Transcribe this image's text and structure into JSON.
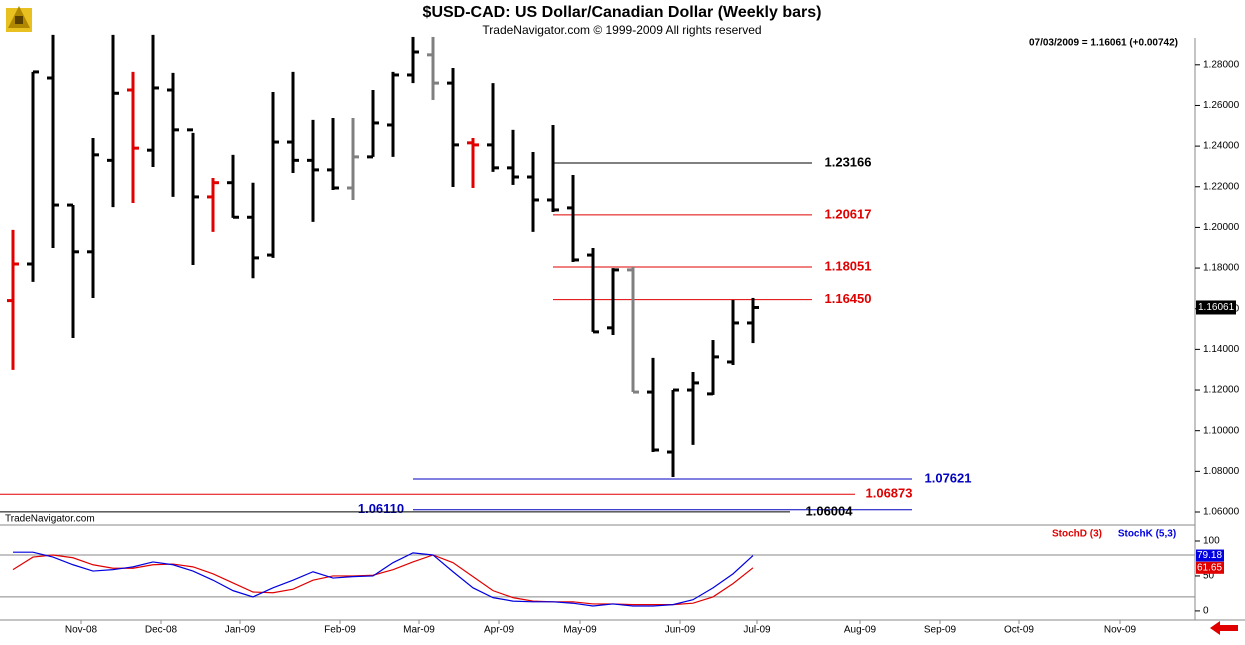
{
  "chart_data": {
    "type": "ohlc",
    "title": "$USD-CAD:  US Dollar/Canadian Dollar  (Weekly bars)",
    "subtitle": "TradeNavigator.com © 1999-2009 All rights reserved",
    "info": "07/03/2009 = 1.16061 (+0.00742)",
    "watermark": "TradeNavigator.com",
    "last_price": {
      "value": 1.16061,
      "label": "1.16061"
    },
    "open": [
      1.164,
      1.182,
      1.2735,
      1.211,
      1.188,
      1.233,
      1.2676,
      1.238,
      1.2676,
      1.248,
      1.215,
      1.222,
      1.205,
      1.1864,
      1.242,
      1.233,
      1.2283,
      1.2194,
      1.2347,
      1.2504,
      1.275,
      1.2849,
      1.271,
      1.2416,
      1.2406,
      1.2293,
      1.2248,
      1.2135,
      1.2096,
      1.1864,
      1.1506,
      1.1791,
      1.119,
      1.0895,
      1.12,
      1.1181,
      1.1338,
      1.153
    ],
    "high": [
      1.1988,
      1.2765,
      1.2947,
      1.211,
      1.244,
      1.2947,
      1.2765,
      1.2947,
      1.276,
      1.2465,
      1.2243,
      1.2357,
      1.222,
      1.2666,
      1.2765,
      1.2529,
      1.2538,
      1.2538,
      1.2676,
      1.2765,
      1.2937,
      1.2937,
      1.2784,
      1.244,
      1.271,
      1.248,
      1.2371,
      1.2504,
      1.2258,
      1.1899,
      1.18,
      1.1805,
      1.1358,
      1.12,
      1.1289,
      1.1446,
      1.1643,
      1.1653
    ],
    "low": [
      1.1299,
      1.1732,
      1.1899,
      1.1456,
      1.1653,
      1.21,
      1.212,
      1.2297,
      1.215,
      1.1815,
      1.1978,
      1.2047,
      1.175,
      1.185,
      1.2268,
      1.2027,
      1.2184,
      1.2135,
      1.2347,
      1.2347,
      1.271,
      1.2627,
      1.2199,
      1.2194,
      1.2273,
      1.2209,
      1.1978,
      1.2076,
      1.183,
      1.1486,
      1.1471,
      1.119,
      1.0895,
      1.0772,
      1.093,
      1.1176,
      1.1323,
      1.1431
    ],
    "close": [
      1.182,
      1.2765,
      1.211,
      1.188,
      1.2357,
      1.266,
      1.239,
      1.2686,
      1.248,
      1.215,
      1.222,
      1.205,
      1.185,
      1.242,
      1.233,
      1.2283,
      1.2194,
      1.2347,
      1.2514,
      1.275,
      1.2863,
      1.271,
      1.2406,
      1.2406,
      1.2293,
      1.2248,
      1.2135,
      1.2086,
      1.184,
      1.1486,
      1.1791,
      1.119,
      1.0905,
      1.12,
      1.1235,
      1.1363,
      1.153,
      1.16061
    ],
    "colors": [
      "#e00000",
      "#000000",
      "#000000",
      "#000000",
      "#000000",
      "#000000",
      "#e00000",
      "#000000",
      "#000000",
      "#000000",
      "#e00000",
      "#000000",
      "#000000",
      "#000000",
      "#000000",
      "#000000",
      "#000000",
      "#808080",
      "#000000",
      "#000000",
      "#000000",
      "#808080",
      "#000000",
      "#e00000",
      "#000000",
      "#000000",
      "#000000",
      "#000000",
      "#000000",
      "#000000",
      "#000000",
      "#808080",
      "#000000",
      "#000000",
      "#000000",
      "#000000",
      "#000000",
      "#000000"
    ],
    "levels": [
      {
        "value": 1.23166,
        "label": "1.23166",
        "color": "#000000"
      },
      {
        "value": 1.20617,
        "label": "1.20617",
        "color": "#e00000"
      },
      {
        "value": 1.18051,
        "label": "1.18051",
        "color": "#e00000"
      },
      {
        "value": 1.1645,
        "label": "1.16450",
        "color": "#e00000"
      },
      {
        "value": 1.07621,
        "label": "1.07621",
        "color": "#0000c0"
      },
      {
        "value": 1.06873,
        "label": "1.06873",
        "color": "#e00000"
      },
      {
        "value": 1.0611,
        "label": "1.06110",
        "color": "#0000c0"
      },
      {
        "value": 1.06004,
        "label": "1.06004",
        "color": "#000000"
      }
    ],
    "xlim": [
      -0.65,
      59.1
    ],
    "xticks": [
      {
        "value": 3.4,
        "label": "Nov-08"
      },
      {
        "value": 7.4,
        "label": "Dec-08"
      },
      {
        "value": 11.35,
        "label": "Jan-09"
      },
      {
        "value": 16.35,
        "label": "Feb-09"
      },
      {
        "value": 20.3,
        "label": "Mar-09"
      },
      {
        "value": 24.3,
        "label": "Apr-09"
      },
      {
        "value": 28.35,
        "label": "May-09"
      },
      {
        "value": 33.35,
        "label": "Jun-09"
      },
      {
        "value": 37.2,
        "label": "Jul-09"
      },
      {
        "value": 42.35,
        "label": "Aug-09"
      },
      {
        "value": 46.35,
        "label": "Sep-09"
      },
      {
        "value": 50.3,
        "label": "Oct-09"
      },
      {
        "value": 55.35,
        "label": "Nov-09"
      }
    ],
    "ylim": [
      1.0536,
      1.2922
    ],
    "yticks": [
      {
        "value": 1.06,
        "label": "1.06000"
      },
      {
        "value": 1.08,
        "label": "1.08000"
      },
      {
        "value": 1.1,
        "label": "1.10000"
      },
      {
        "value": 1.12,
        "label": "1.12000"
      },
      {
        "value": 1.14,
        "label": "1.14000"
      },
      {
        "value": 1.16,
        "label": "1.16000"
      },
      {
        "value": 1.18,
        "label": "1.18000"
      },
      {
        "value": 1.2,
        "label": "1.20000"
      },
      {
        "value": 1.22,
        "label": "1.22000"
      },
      {
        "value": 1.24,
        "label": "1.24000"
      },
      {
        "value": 1.26,
        "label": "1.26000"
      },
      {
        "value": 1.28,
        "label": "1.28000"
      }
    ],
    "stoch": {
      "ylim": [
        -13,
        120
      ],
      "yticks": [
        0,
        50,
        100
      ],
      "levels": [
        20,
        80
      ],
      "series": [
        {
          "name": "StochD (3)",
          "color": "#e00000",
          "values": [
            59,
            77,
            80,
            76,
            66,
            61,
            61,
            66,
            67,
            63,
            53,
            40,
            27,
            26,
            31,
            44,
            50,
            50,
            51,
            59,
            70,
            80,
            69,
            49,
            29,
            19,
            14,
            13,
            13,
            10,
            10,
            9,
            9,
            9,
            11,
            20,
            39,
            61.65
          ]
        },
        {
          "name": "StochK (5,3)",
          "color": "#0000e0",
          "values": [
            84,
            84,
            77,
            66,
            57,
            59,
            63,
            70,
            66,
            57,
            44,
            29,
            20,
            33,
            44,
            56,
            47,
            49,
            50,
            69,
            83,
            80,
            56,
            33,
            19,
            14,
            13,
            13,
            11,
            7,
            10,
            7,
            7,
            9,
            16,
            33,
            53,
            79.18
          ]
        }
      ]
    }
  }
}
